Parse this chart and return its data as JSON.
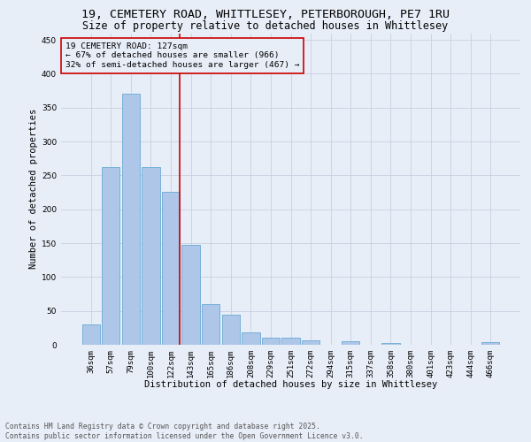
{
  "title_line1": "19, CEMETERY ROAD, WHITTLESEY, PETERBOROUGH, PE7 1RU",
  "title_line2": "Size of property relative to detached houses in Whittlesey",
  "xlabel": "Distribution of detached houses by size in Whittlesey",
  "ylabel": "Number of detached properties",
  "categories": [
    "36sqm",
    "57sqm",
    "79sqm",
    "100sqm",
    "122sqm",
    "143sqm",
    "165sqm",
    "186sqm",
    "208sqm",
    "229sqm",
    "251sqm",
    "272sqm",
    "294sqm",
    "315sqm",
    "337sqm",
    "358sqm",
    "380sqm",
    "401sqm",
    "423sqm",
    "444sqm",
    "466sqm"
  ],
  "values": [
    30,
    262,
    370,
    262,
    226,
    148,
    60,
    45,
    18,
    10,
    10,
    6,
    0,
    5,
    0,
    3,
    0,
    0,
    0,
    0,
    4
  ],
  "bar_color": "#aec6e8",
  "bar_edge_color": "#6aaad4",
  "grid_color": "#c8d0e0",
  "background_color": "#e8eef8",
  "marker_index": 4,
  "marker_color": "#cc0000",
  "annotation_title": "19 CEMETERY ROAD: 127sqm",
  "annotation_line1": "← 67% of detached houses are smaller (966)",
  "annotation_line2": "32% of semi-detached houses are larger (467) →",
  "annotation_box_color": "#cc0000",
  "ylim": [
    0,
    460
  ],
  "yticks": [
    0,
    50,
    100,
    150,
    200,
    250,
    300,
    350,
    400,
    450
  ],
  "footer_line1": "Contains HM Land Registry data © Crown copyright and database right 2025.",
  "footer_line2": "Contains public sector information licensed under the Open Government Licence v3.0.",
  "title_fontsize": 9.5,
  "subtitle_fontsize": 8.5,
  "axis_label_fontsize": 7.5,
  "tick_fontsize": 6.5,
  "annotation_fontsize": 6.8,
  "footer_fontsize": 5.8
}
